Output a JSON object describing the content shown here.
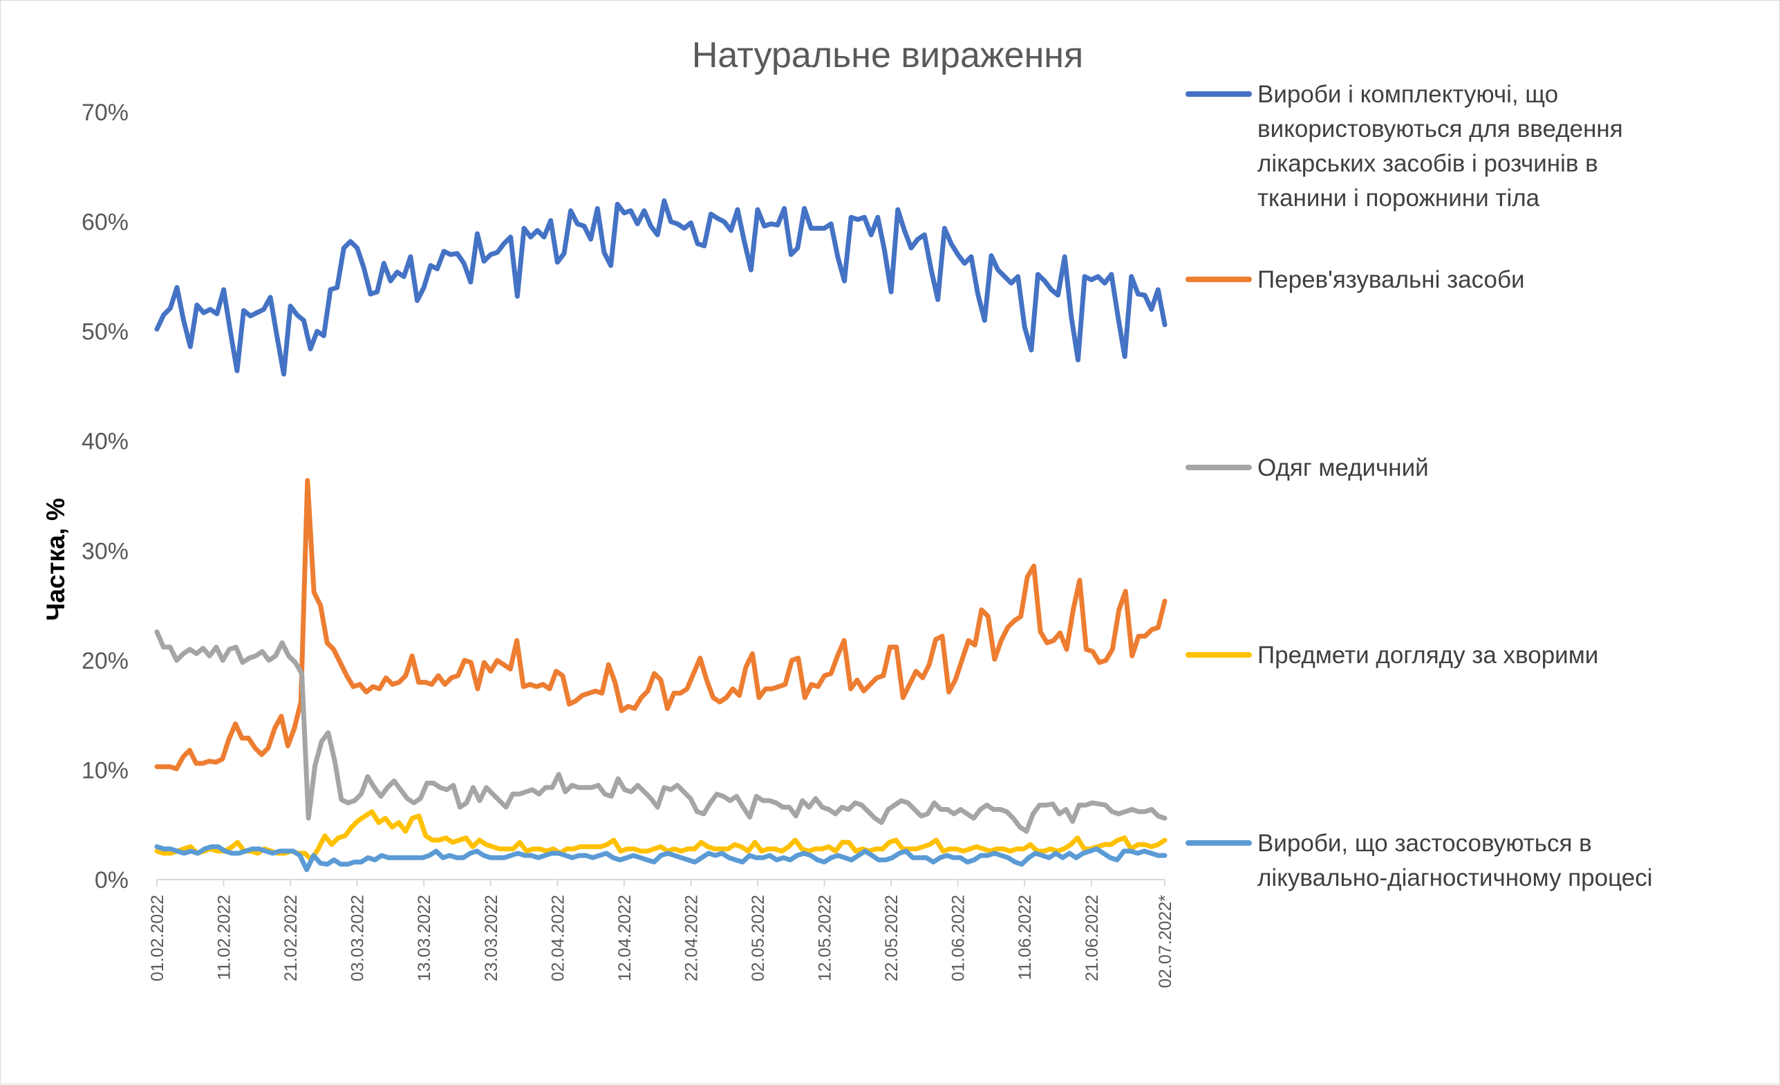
{
  "chart_data": {
    "type": "line",
    "title": "Натуральне вираження",
    "ylabel": "Частка, %",
    "xlabel": "",
    "ylim": [
      0,
      70
    ],
    "y_ticks": [
      "0%",
      "10%",
      "20%",
      "30%",
      "40%",
      "50%",
      "60%",
      "70%"
    ],
    "x_tick_labels": [
      "01.02.2022",
      "11.02.2022",
      "21.02.2022",
      "03.03.2022",
      "13.03.2022",
      "23.03.2022",
      "02.04.2022",
      "12.04.2022",
      "22.04.2022",
      "02.05.2022",
      "12.05.2022",
      "22.05.2022",
      "01.06.2022",
      "11.06.2022",
      "21.06.2022",
      "02.07.2022*"
    ],
    "x_tick_days": [
      0,
      10,
      20,
      30,
      40,
      50,
      60,
      70,
      80,
      90,
      100,
      110,
      120,
      130,
      140,
      151
    ],
    "x_range_days": [
      0,
      151
    ],
    "grid": false,
    "legend_position": "right",
    "series": [
      {
        "name": "Вироби і комплектуючі, що використовуються для введення лікарських засобів і розчинів в тканини і порожнини тіла",
        "color": "#4472C4",
        "values": [
          50.2,
          51.5,
          52.1,
          54.0,
          51.0,
          48.6,
          52.4,
          51.7,
          52.0,
          51.6,
          53.8,
          50.0,
          46.4,
          51.9,
          51.4,
          51.7,
          52.0,
          53.1,
          49.5,
          46.1,
          52.3,
          51.5,
          51.0,
          48.4,
          50.0,
          49.6,
          53.8,
          54.0,
          57.6,
          58.2,
          57.6,
          55.8,
          53.4,
          53.6,
          56.2,
          54.6,
          55.4,
          55.0,
          56.8,
          52.8,
          54.0,
          56.0,
          55.7,
          57.3,
          57.0,
          57.1,
          56.2,
          54.5,
          58.9,
          56.4,
          57.0,
          57.2,
          58.0,
          58.6,
          53.2,
          59.4,
          58.6,
          59.2,
          58.6,
          60.1,
          56.3,
          57.1,
          61.0,
          59.8,
          59.6,
          58.4,
          61.2,
          57.2,
          56.0,
          61.6,
          60.8,
          61.0,
          59.8,
          61.0,
          59.6,
          58.8,
          61.9,
          60.0,
          59.8,
          59.4,
          59.9,
          58.0,
          57.8,
          60.7,
          60.3,
          60.0,
          59.2,
          61.1,
          58.2,
          55.6,
          61.1,
          59.6,
          59.8,
          59.7,
          61.2,
          57.0,
          57.6,
          61.2,
          59.4,
          59.4,
          59.4,
          59.8,
          56.8,
          54.6,
          60.4,
          60.2,
          60.4,
          58.8,
          60.4,
          57.4,
          53.6,
          61.1,
          59.2,
          57.6,
          58.4,
          58.8,
          55.6,
          52.9,
          59.4,
          58.0,
          57.0,
          56.2,
          56.8,
          53.4,
          51.0,
          56.9,
          55.6,
          55.0,
          54.4,
          55.0,
          50.4,
          48.3,
          55.2,
          54.6,
          53.8,
          53.3,
          56.8,
          51.3,
          47.4,
          55.0,
          54.7,
          55.0,
          54.4,
          55.2,
          51.3,
          47.7,
          55.0,
          53.4,
          53.3,
          52.0,
          53.8,
          50.6
        ]
      },
      {
        "name": "Перев'язувальні засоби",
        "color": "#ED7D31",
        "values": [
          10.3,
          10.3,
          10.3,
          10.1,
          11.2,
          11.8,
          10.6,
          10.6,
          10.8,
          10.7,
          11.0,
          12.8,
          14.2,
          12.9,
          12.9,
          12.0,
          11.4,
          12.0,
          13.8,
          14.9,
          12.2,
          13.8,
          16.2,
          36.4,
          26.2,
          25.0,
          21.6,
          21.0,
          19.8,
          18.6,
          17.6,
          17.8,
          17.1,
          17.6,
          17.4,
          18.4,
          17.8,
          18.0,
          18.6,
          20.4,
          18.0,
          18.0,
          17.8,
          18.6,
          17.8,
          18.4,
          18.6,
          20.0,
          19.8,
          17.4,
          19.8,
          19.0,
          20.0,
          19.6,
          19.2,
          21.8,
          17.6,
          17.8,
          17.6,
          17.8,
          17.4,
          19.0,
          18.6,
          16.0,
          16.3,
          16.8,
          17.0,
          17.2,
          17.0,
          19.6,
          18.0,
          15.4,
          15.8,
          15.6,
          16.6,
          17.2,
          18.8,
          18.2,
          15.6,
          17.0,
          17.0,
          17.4,
          18.8,
          20.2,
          18.2,
          16.6,
          16.2,
          16.6,
          17.4,
          16.8,
          19.4,
          20.6,
          16.6,
          17.4,
          17.4,
          17.6,
          17.8,
          20.0,
          20.2,
          16.6,
          17.8,
          17.6,
          18.6,
          18.8,
          20.4,
          21.8,
          17.4,
          18.2,
          17.2,
          17.8,
          18.4,
          18.6,
          21.2,
          21.2,
          16.6,
          17.8,
          19.0,
          18.4,
          19.6,
          21.9,
          22.2,
          17.1,
          18.2,
          20.0,
          21.8,
          21.4,
          24.6,
          24.0,
          20.1,
          21.8,
          23.0,
          23.6,
          24.0,
          27.6,
          28.6,
          22.6,
          21.6,
          21.8,
          22.5,
          21.0,
          24.6,
          27.3,
          21.0,
          20.8,
          19.8,
          20.0,
          21.0,
          24.6,
          26.3,
          20.4,
          22.2,
          22.2,
          22.8,
          23.0,
          25.4
        ]
      },
      {
        "name": "Одяг медичний",
        "color": "#A5A5A5",
        "values": [
          22.6,
          21.2,
          21.2,
          20.0,
          20.6,
          21.0,
          20.6,
          21.1,
          20.4,
          21.2,
          20.0,
          21.0,
          21.2,
          19.8,
          20.2,
          20.4,
          20.8,
          20.0,
          20.4,
          21.6,
          20.4,
          19.8,
          18.8,
          5.6,
          10.4,
          12.6,
          13.4,
          10.8,
          7.3,
          7.0,
          7.2,
          7.8,
          9.4,
          8.4,
          7.6,
          8.4,
          9.0,
          8.2,
          7.4,
          7.0,
          7.4,
          8.8,
          8.8,
          8.4,
          8.2,
          8.6,
          6.6,
          7.0,
          8.4,
          7.2,
          8.4,
          7.8,
          7.2,
          6.6,
          7.8,
          7.8,
          8.0,
          8.2,
          7.8,
          8.4,
          8.4,
          9.6,
          8.0,
          8.6,
          8.4,
          8.4,
          8.4,
          8.6,
          7.8,
          7.6,
          9.2,
          8.2,
          8.0,
          8.6,
          8.0,
          7.4,
          6.6,
          8.4,
          8.2,
          8.6,
          8.0,
          7.4,
          6.2,
          6.0,
          7.0,
          7.8,
          7.6,
          7.2,
          7.6,
          6.6,
          5.7,
          7.6,
          7.2,
          7.2,
          7.0,
          6.6,
          6.6,
          5.8,
          7.2,
          6.6,
          7.4,
          6.6,
          6.4,
          6.0,
          6.6,
          6.4,
          7.0,
          6.8,
          6.2,
          5.6,
          5.2,
          6.4,
          6.8,
          7.2,
          7.0,
          6.4,
          5.8,
          6.0,
          7.0,
          6.4,
          6.4,
          6.0,
          6.4,
          6.0,
          5.6,
          6.4,
          6.8,
          6.4,
          6.4,
          6.2,
          5.6,
          4.8,
          4.4,
          6.0,
          6.8,
          6.8,
          6.9,
          6.0,
          6.4,
          5.3,
          6.8,
          6.8,
          7.0,
          6.9,
          6.8,
          6.2,
          6.0,
          6.2,
          6.4,
          6.2,
          6.2,
          6.4,
          5.8,
          5.6
        ]
      },
      {
        "name": "Предмети догляду за хворими",
        "color": "#FFC000",
        "values": [
          2.6,
          2.4,
          2.4,
          2.6,
          2.8,
          3.0,
          2.4,
          2.6,
          2.8,
          2.6,
          2.6,
          2.9,
          3.4,
          2.6,
          2.6,
          2.4,
          2.8,
          2.6,
          2.4,
          2.4,
          2.6,
          2.4,
          2.4,
          1.8,
          2.8,
          4.0,
          3.2,
          3.8,
          4.0,
          4.8,
          5.4,
          5.8,
          6.2,
          5.2,
          5.6,
          4.8,
          5.2,
          4.4,
          5.6,
          5.8,
          4.0,
          3.6,
          3.6,
          3.8,
          3.4,
          3.6,
          3.8,
          3.0,
          3.6,
          3.2,
          3.0,
          2.8,
          2.8,
          2.8,
          3.4,
          2.6,
          2.8,
          2.8,
          2.6,
          2.8,
          2.4,
          2.8,
          2.8,
          3.0,
          3.0,
          3.0,
          3.0,
          3.2,
          3.6,
          2.6,
          2.8,
          2.8,
          2.6,
          2.6,
          2.8,
          3.0,
          2.6,
          2.8,
          2.6,
          2.8,
          2.8,
          3.4,
          3.0,
          2.8,
          2.8,
          2.8,
          3.2,
          3.0,
          2.6,
          3.4,
          2.6,
          2.8,
          2.8,
          2.6,
          3.0,
          3.6,
          2.8,
          2.6,
          2.8,
          2.8,
          3.0,
          2.6,
          3.4,
          3.4,
          2.6,
          2.8,
          2.6,
          2.8,
          2.8,
          3.4,
          3.6,
          2.8,
          2.8,
          2.8,
          3.0,
          3.2,
          3.6,
          2.6,
          2.8,
          2.8,
          2.6,
          2.8,
          3.0,
          2.8,
          2.6,
          2.8,
          2.8,
          2.6,
          2.8,
          2.8,
          3.2,
          2.6,
          2.6,
          2.8,
          2.6,
          2.8,
          3.2,
          3.8,
          2.8,
          2.8,
          3.0,
          3.2,
          3.2,
          3.6,
          3.8,
          2.8,
          3.2,
          3.2,
          3.0,
          3.2,
          3.6
        ]
      },
      {
        "name": "Вироби, що застосовуються в лікувально-діагностичному процесі",
        "color": "#5B9BD5",
        "values": [
          3.0,
          2.8,
          2.8,
          2.6,
          2.4,
          2.6,
          2.4,
          2.8,
          3.0,
          3.0,
          2.6,
          2.4,
          2.4,
          2.6,
          2.8,
          2.8,
          2.6,
          2.4,
          2.6,
          2.6,
          2.6,
          2.2,
          0.9,
          2.2,
          1.5,
          1.4,
          1.8,
          1.4,
          1.4,
          1.6,
          1.6,
          2.0,
          1.8,
          2.2,
          2.0,
          2.0,
          2.0,
          2.0,
          2.0,
          2.0,
          2.2,
          2.6,
          2.0,
          2.2,
          2.0,
          2.0,
          2.4,
          2.6,
          2.2,
          2.0,
          2.0,
          2.0,
          2.2,
          2.4,
          2.2,
          2.2,
          2.0,
          2.2,
          2.4,
          2.4,
          2.2,
          2.0,
          2.2,
          2.2,
          2.0,
          2.2,
          2.4,
          2.0,
          1.8,
          2.0,
          2.2,
          2.0,
          1.8,
          1.6,
          2.2,
          2.4,
          2.2,
          2.0,
          1.8,
          1.6,
          2.0,
          2.4,
          2.2,
          2.4,
          2.0,
          1.8,
          1.6,
          2.2,
          2.0,
          2.0,
          2.2,
          1.8,
          2.0,
          1.8,
          2.2,
          2.4,
          2.2,
          1.8,
          1.6,
          2.0,
          2.2,
          2.0,
          1.8,
          2.2,
          2.6,
          2.2,
          1.8,
          1.8,
          2.0,
          2.4,
          2.6,
          2.0,
          2.0,
          2.0,
          1.6,
          2.0,
          2.2,
          2.0,
          2.0,
          1.6,
          1.8,
          2.2,
          2.2,
          2.4,
          2.2,
          2.0,
          1.6,
          1.4,
          2.0,
          2.4,
          2.2,
          2.0,
          2.4,
          2.0,
          2.4,
          2.0,
          2.4,
          2.6,
          2.8,
          2.4,
          2.0,
          1.8,
          2.6,
          2.6,
          2.4,
          2.6,
          2.4,
          2.2,
          2.2
        ]
      }
    ]
  }
}
